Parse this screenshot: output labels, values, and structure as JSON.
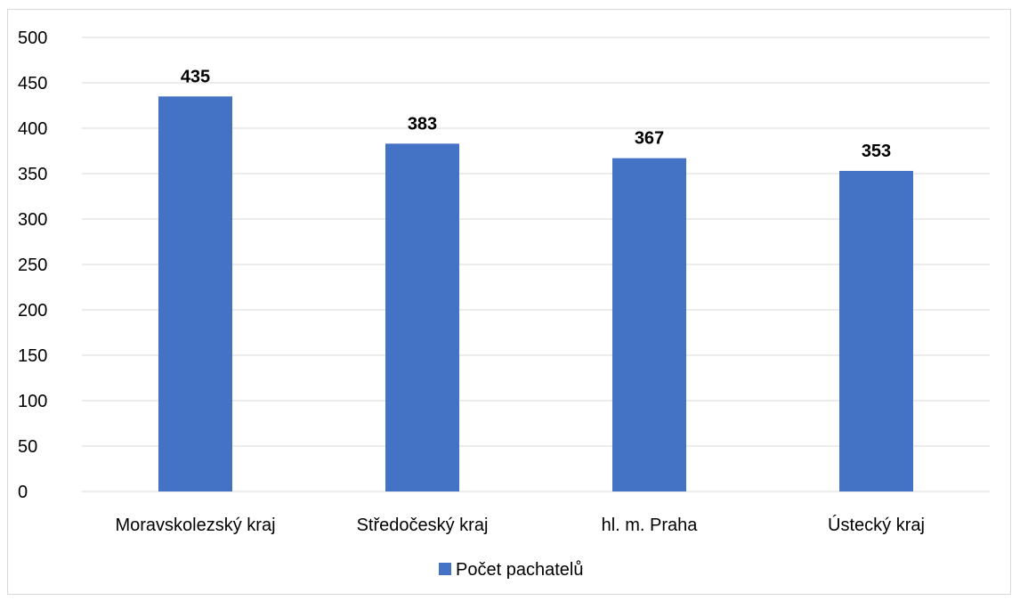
{
  "chart_data": {
    "type": "bar",
    "categories": [
      "Moravskolezský kraj",
      "Středočeský kraj",
      "hl. m. Praha",
      "Ústecký kraj"
    ],
    "series": [
      {
        "name": "Počet pachatelů",
        "values": [
          435,
          383,
          367,
          353
        ],
        "color": "#4472c4"
      }
    ],
    "ylim": [
      0,
      500
    ],
    "yticks": [
      0,
      50,
      100,
      150,
      200,
      250,
      300,
      350,
      400,
      450,
      500
    ],
    "grid": true,
    "legend_position": "bottom",
    "data_labels": true,
    "gridline_color": "#d9d9d9"
  }
}
